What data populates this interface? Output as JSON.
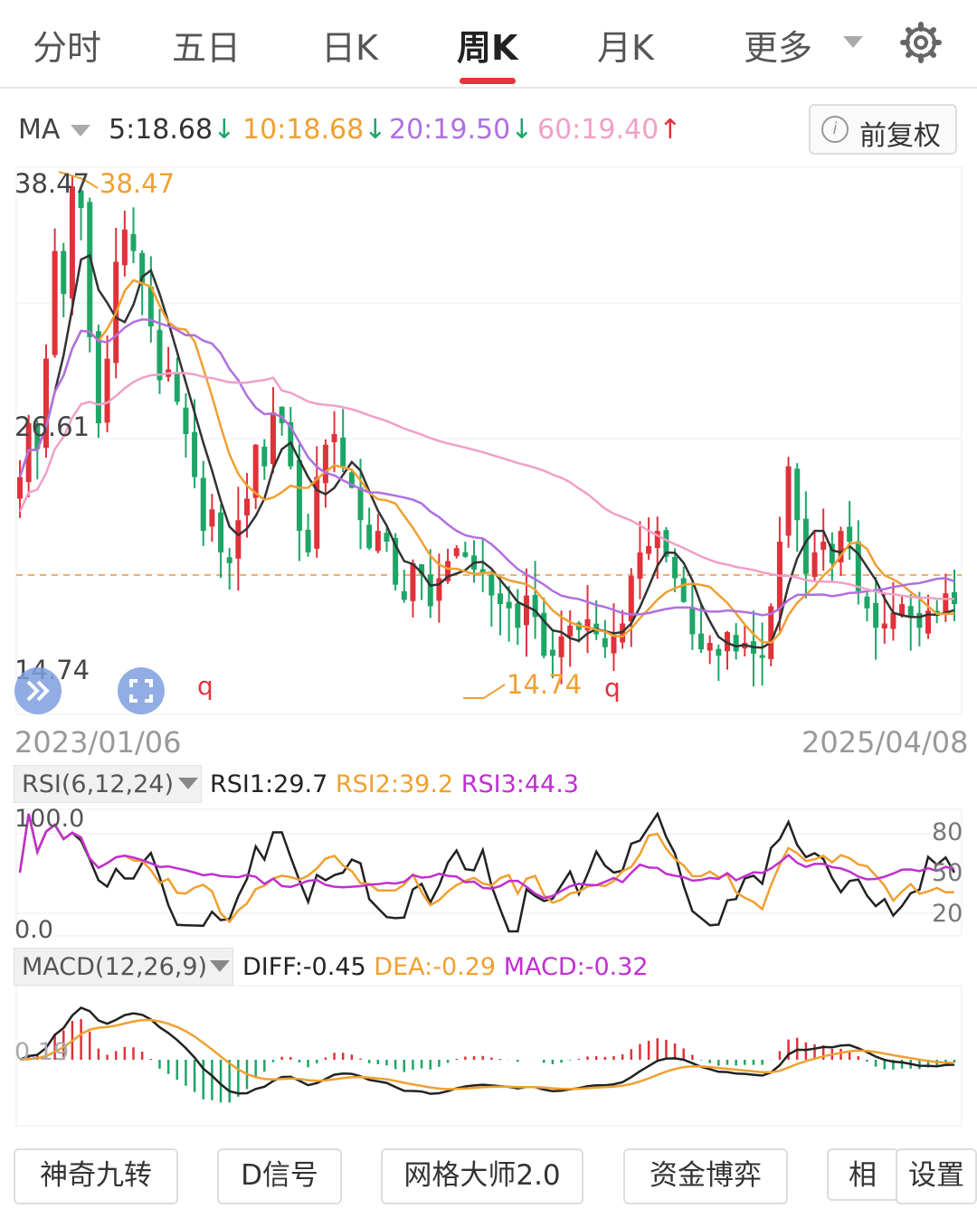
{
  "tabs": [
    "分时",
    "五日",
    "日K",
    "周K",
    "月K",
    "更多"
  ],
  "icons": {
    "settings": "gear-icon",
    "dropdown": "caret-down-icon",
    "info": "info-icon",
    "expand": "double-chevron-right-icon",
    "fullscreen": "fullscreen-icon"
  },
  "ma": {
    "label": "MA",
    "ma5": "5:18.68",
    "ma10": "10:18.68",
    "ma20": "20:19.50",
    "ma60": "60:19.40",
    "ma5_arrow": "↓",
    "ma10_arrow": "↓",
    "ma20_arrow": "↓",
    "ma60_arrow": "↑",
    "fq_label": "前复权"
  },
  "colors": {
    "up": "#e0323a",
    "down": "#1ea667",
    "ma5": "#333333",
    "ma10": "#f0a030",
    "ma20": "#b070e0",
    "ma60": "#f0a0c8",
    "rsi3": "#c030d0"
  },
  "price_axis": {
    "max_label": "38.47",
    "mid_label": "26.61",
    "min_label": "14.74",
    "high_mark": "38.47",
    "low_mark": "14.74",
    "q1": "q",
    "q2": "q"
  },
  "dates": {
    "start": "2023/01/06",
    "end": "2025/04/08"
  },
  "rsi": {
    "label": "RSI(6,12,24)",
    "rsi1": "RSI1:29.7",
    "rsi2": "RSI2:39.2",
    "rsi3": "RSI3:44.3",
    "top": "100.0",
    "bottom": "0.0",
    "r80": "80",
    "r50": "50",
    "r20": "20"
  },
  "macd": {
    "label": "MACD(12,26,9)",
    "diff": "DIFF:-0.45",
    "dea": "DEA:-0.29",
    "macd": "MACD:-0.32",
    "left": "0.19"
  },
  "buttons": [
    "神奇九转",
    "D信号",
    "网格大师2.0",
    "资金博弈",
    "相",
    "设置"
  ],
  "chart_data": [
    {
      "type": "candlestick",
      "name": "周K",
      "x_range": [
        "2023/01/06",
        "2025/04/08"
      ],
      "ylim": [
        14.74,
        38.47
      ],
      "max": 38.47,
      "min": 14.74,
      "close": [
        24.5,
        27,
        25.8,
        30,
        35,
        33,
        38,
        37,
        31,
        27,
        30,
        34.5,
        36,
        35,
        33.5,
        31.5,
        29,
        29.5,
        28,
        26.5,
        24.5,
        22,
        23,
        21,
        20.5,
        22.5,
        23.5,
        26,
        25,
        27.5,
        27,
        25,
        22,
        21,
        24.5,
        26,
        26.5,
        25,
        24,
        22.5,
        21.2,
        22,
        21.5,
        19.5,
        18.8,
        20.5,
        20,
        18.5,
        19.8,
        20.6,
        21.2,
        20.8,
        20.2,
        20,
        19,
        18.6,
        18.4,
        17.5,
        19,
        18,
        16.2,
        16.2,
        17.1,
        17.6,
        17.4,
        17.9,
        17.2,
        16.6,
        17.1,
        17.7,
        19.9,
        21,
        21.3,
        22,
        20.8,
        19.8,
        18.7,
        17.2,
        16.5,
        16.8,
        16.2,
        17.3,
        16.4,
        16.8,
        16.3,
        16.1,
        18.5,
        21.5,
        25,
        22.5,
        20,
        21,
        21.5,
        20.5,
        22,
        21.5,
        19.2,
        18.4,
        17.5,
        17.7,
        18.2,
        18.6,
        18,
        17.5,
        18.3,
        18.1,
        19.1,
        18.6
      ],
      "ma5_last": 18.68,
      "ma10_last": 18.68,
      "ma20_last": 19.5,
      "ma60_last": 19.4
    },
    {
      "type": "line",
      "name": "RSI",
      "ylim": [
        0,
        100
      ],
      "series": [
        {
          "name": "RSI1",
          "last": 29.7
        },
        {
          "name": "RSI2",
          "last": 39.2
        },
        {
          "name": "RSI3",
          "last": 44.3
        }
      ]
    },
    {
      "type": "bar",
      "name": "MACD",
      "series": [
        {
          "name": "DIFF",
          "last": -0.45
        },
        {
          "name": "DEA",
          "last": -0.29
        },
        {
          "name": "MACD",
          "last": -0.32
        }
      ]
    }
  ]
}
